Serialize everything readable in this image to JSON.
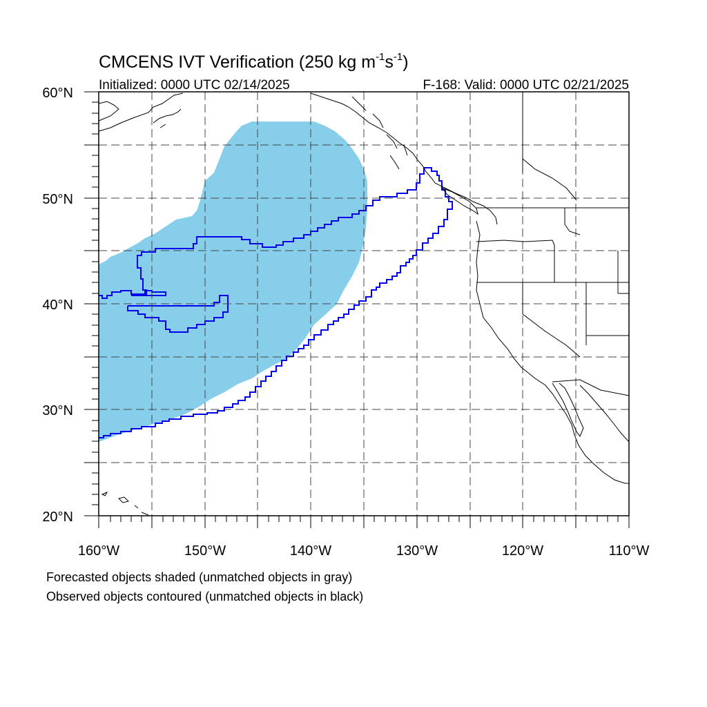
{
  "title": {
    "main_prefix": "CMCENS IVT Verification (250 kg m",
    "exp1": "-1",
    "middle": "s",
    "exp2": "-1",
    "suffix": ")"
  },
  "subtitle_left": "Initialized: 0000 UTC 02/14/2025",
  "subtitle_right": "F-168: Valid: 0000 UTC 02/21/2025",
  "lat_labels": [
    "60°N",
    "50°N",
    "40°N",
    "30°N",
    "20°N"
  ],
  "lon_labels": [
    "160°W",
    "150°W",
    "140°W",
    "130°W",
    "120°W",
    "110°W"
  ],
  "caption_line1": "Forecasted objects shaded (unmatched objects in gray)",
  "caption_line2": "Observed objects contoured (unmatched objects in black)",
  "colors": {
    "forecast_fill": "#87ceeb",
    "observed_contour": "#0000ee",
    "coastline": "#000000",
    "grid": "#444444"
  },
  "map_extent": {
    "lon_min": -160,
    "lon_max": -110,
    "lat_min": 20,
    "lat_max": 60
  }
}
